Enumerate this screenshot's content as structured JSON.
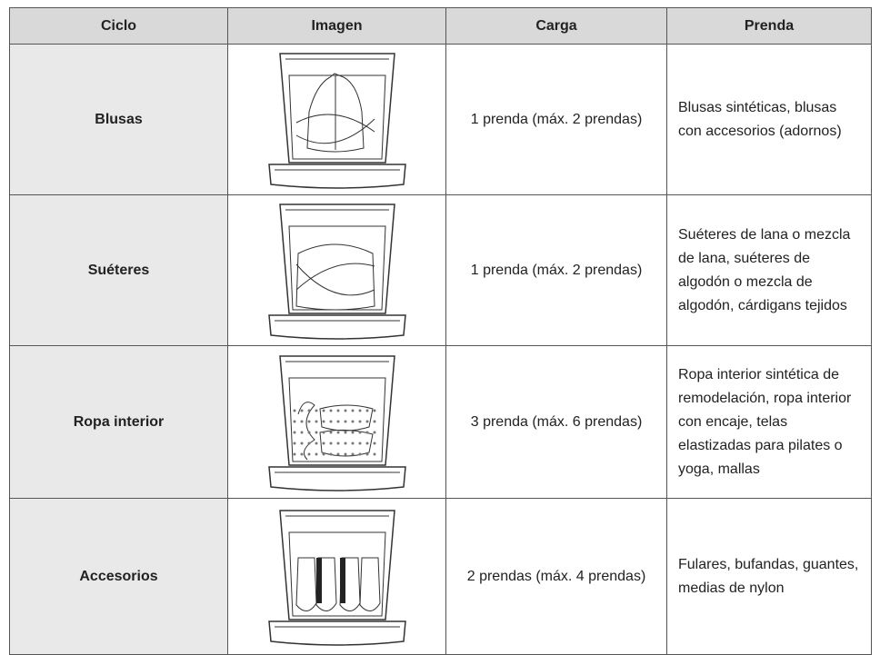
{
  "table": {
    "headers": [
      "Ciclo",
      "Imagen",
      "Carga",
      "Prenda"
    ],
    "rows": [
      {
        "ciclo": "Blusas",
        "carga": "1 prenda (máx. 2 prendas)",
        "prenda": "Blusas sintéticas, blusas con accesorios (adornos)"
      },
      {
        "ciclo": "Suéteres",
        "carga": "1 prenda (máx. 2 prendas)",
        "prenda": "Suéteres de lana o mezcla de lana, suéteres de algodón o mezcla de algodón, cárdigans tejidos"
      },
      {
        "ciclo": "Ropa interior",
        "carga": "3 prenda (máx. 6 prendas)",
        "prenda": "Ropa interior sintética de remodelación, ropa interior con encaje, telas elastizadas para pilates o yoga, mallas"
      },
      {
        "ciclo": "Accesorios",
        "carga": "2 prendas (máx. 4 prendas)",
        "prenda": "Fulares, bufandas, guantes, medias de nylon"
      }
    ]
  }
}
